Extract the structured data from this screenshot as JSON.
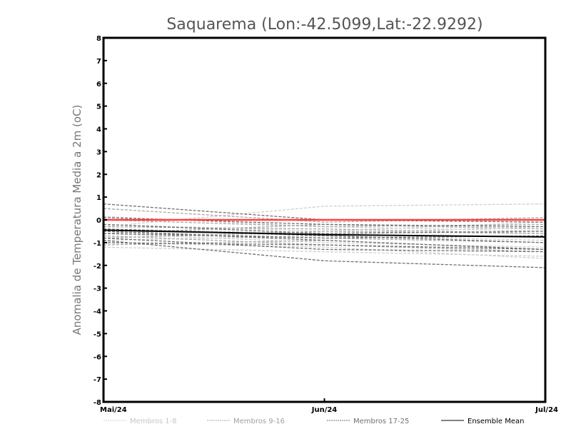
{
  "chart_data": {
    "type": "line",
    "title": "Saquarema (Lon:-42.5099,Lat:-22.9292)",
    "xlabel": "",
    "ylabel": "Anomalia de Temperatura Media a 2m (oC)",
    "categories": [
      "Mai/24",
      "Jun/24",
      "Jul/24"
    ],
    "ylim": [
      -8,
      8
    ],
    "yticks": [
      "-8",
      "-7",
      "-6",
      "-5",
      "-4",
      "-3",
      "-2",
      "-1",
      "0",
      "1",
      "2",
      "3",
      "4",
      "5",
      "6",
      "7",
      "8"
    ],
    "grid": false,
    "legend_position": "bottom",
    "groups": [
      {
        "name": "Membros 1-8",
        "color": "#cfcfcf",
        "dashed": true,
        "series": [
          [
            -0.3,
            0.6,
            0.7
          ],
          [
            -1.2,
            -1.4,
            -1.6
          ],
          [
            0.15,
            -0.3,
            -0.5
          ],
          [
            -0.6,
            -1.0,
            -1.2
          ],
          [
            -0.9,
            -0.7,
            -0.9
          ],
          [
            -0.4,
            -0.6,
            -0.3
          ],
          [
            -1.0,
            -1.2,
            -1.7
          ],
          [
            -0.2,
            -0.5,
            -0.1
          ]
        ]
      },
      {
        "name": "Membros 9-16",
        "color": "#a8a8a8",
        "dashed": true,
        "series": [
          [
            0.5,
            -0.1,
            0.1
          ],
          [
            -0.5,
            -0.8,
            -1.0
          ],
          [
            -0.8,
            -0.5,
            -0.6
          ],
          [
            0.0,
            -0.3,
            -0.2
          ],
          [
            -0.7,
            -1.1,
            -1.4
          ],
          [
            -0.3,
            -0.4,
            -0.6
          ],
          [
            -1.1,
            -0.9,
            -1.3
          ],
          [
            -0.6,
            -0.2,
            -0.4
          ]
        ]
      },
      {
        "name": "Membros 17-25",
        "color": "#707070",
        "dashed": true,
        "series": [
          [
            0.7,
            0.0,
            -0.1
          ],
          [
            -0.9,
            -1.8,
            -2.1
          ],
          [
            -0.4,
            -0.7,
            -1.0
          ],
          [
            -0.5,
            -0.9,
            -1.3
          ],
          [
            -0.2,
            -0.6,
            -0.5
          ],
          [
            -0.8,
            -1.3,
            -1.4
          ],
          [
            0.1,
            -0.2,
            -0.3
          ],
          [
            -0.6,
            -0.8,
            -0.7
          ],
          [
            -1.0,
            -1.1,
            -1.3
          ]
        ]
      }
    ],
    "ensemble_mean": {
      "name": "Ensemble Mean",
      "color": "#000000",
      "values": [
        -0.45,
        -0.65,
        -0.75
      ]
    },
    "zero_line": {
      "color": "#ff4040",
      "values": [
        0,
        0,
        0
      ]
    }
  }
}
